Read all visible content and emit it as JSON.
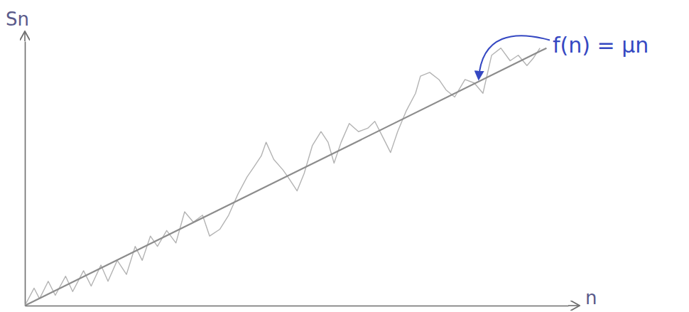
{
  "chart_data": {
    "type": "line",
    "x_label": "n",
    "y_label": "Sn",
    "annotations": [
      {
        "text": "f(n) = μn",
        "color": "#3548c2"
      }
    ],
    "xlim": [
      0,
      100
    ],
    "ylim": [
      0,
      100
    ],
    "xticks": [],
    "yticks": [],
    "tick_labels": false,
    "grid": false,
    "series": [
      {
        "color": "#b3b3b3",
        "line_style": "solid",
        "marker": "none",
        "x": [
          0,
          1.7,
          2.7,
          4.3,
          5.6,
          7.5,
          8.8,
          10.8,
          12.2,
          14.0,
          15.3,
          17.0,
          18.7,
          20.3,
          21.6,
          23.1,
          24.4,
          26.1,
          27.8,
          29.4,
          31.0,
          32.7,
          34.0,
          35.9,
          37.5,
          39.2,
          40.9,
          42.2,
          43.5,
          44.4,
          45.8,
          47.5,
          48.4,
          50.1,
          51.4,
          52.9,
          54.5,
          55.8,
          56.9,
          58.2,
          59.7,
          61.4,
          63.1,
          64.4,
          66.0,
          67.3,
          68.6,
          70.2,
          71.9,
          72.8,
          74.5,
          76.2,
          77.5,
          79.1,
          81.0,
          82.7,
          84.3,
          85.9,
          87.6,
          89.3,
          90.8,
          92.4,
          93.5,
          94.8
        ],
        "values": [
          0,
          6.6,
          2.6,
          9.2,
          3.9,
          11.1,
          5.3,
          13.2,
          7.4,
          15.3,
          9.2,
          17.1,
          11.8,
          22.4,
          17.1,
          26.3,
          22.4,
          28.4,
          23.7,
          35.5,
          31.6,
          34.2,
          26.3,
          28.9,
          34.2,
          42.1,
          48.7,
          52.6,
          56.6,
          61.8,
          55.3,
          51.3,
          48.7,
          43.4,
          50.0,
          60.5,
          65.8,
          61.8,
          53.9,
          61.8,
          68.9,
          65.8,
          67.1,
          69.7,
          63.2,
          57.9,
          65.8,
          73.7,
          80.3,
          86.8,
          88.2,
          85.5,
          81.6,
          78.9,
          85.5,
          84.2,
          80.3,
          94.7,
          97.4,
          92.6,
          94.7,
          90.8,
          93.4,
          97.4
        ]
      },
      {
        "color": "#8c8c8c",
        "line_style": "solid",
        "marker": "none",
        "x": [
          0,
          96
        ],
        "values": [
          0,
          97.4
        ]
      }
    ]
  }
}
